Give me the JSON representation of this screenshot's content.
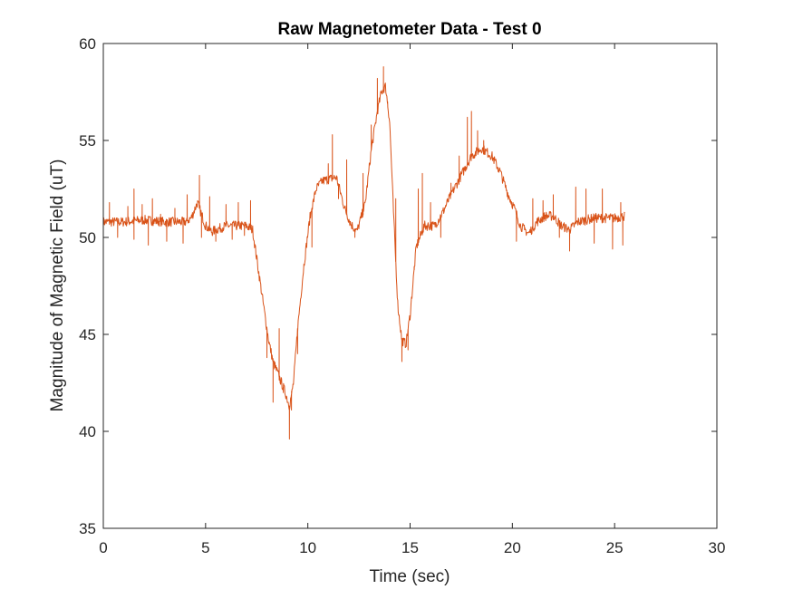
{
  "chart_data": {
    "type": "line",
    "title": "Raw Magnetometer Data - Test 0",
    "xlabel": "Time (sec)",
    "ylabel": "Magnitude of Magnetic Field (uT)",
    "xlim": [
      0,
      30
    ],
    "ylim": [
      35,
      60
    ],
    "x_ticks": [
      0,
      5,
      10,
      15,
      20,
      25,
      30
    ],
    "y_ticks": [
      35,
      40,
      45,
      50,
      55,
      60
    ],
    "grid": false,
    "legend": "none",
    "series": [
      {
        "color": "#D95319",
        "noise": 0.25,
        "x": [
          0,
          1,
          2,
          3,
          4,
          4.3,
          4.6,
          5,
          5.3,
          6,
          7,
          7.3,
          7.6,
          7.9,
          8.1,
          8.3,
          8.6,
          8.9,
          9.1,
          9.3,
          9.5,
          9.8,
          10.1,
          10.4,
          10.7,
          11,
          11.4,
          11.8,
          12.1,
          12.4,
          12.8,
          13.1,
          13.4,
          13.6,
          13.8,
          14.0,
          14.2,
          14.4,
          14.6,
          14.8,
          15.0,
          15.3,
          15.7,
          16.2,
          16.6,
          17.0,
          17.5,
          18.0,
          18.5,
          19.0,
          19.4,
          19.8,
          20.1,
          20.4,
          20.8,
          21.2,
          21.6,
          22.0,
          22.4,
          22.8,
          23.2,
          24.0,
          25.0,
          25.5
        ],
        "y": [
          50.8,
          50.8,
          50.9,
          50.8,
          50.8,
          51.0,
          51.8,
          50.6,
          50.3,
          50.6,
          50.6,
          50.4,
          48.2,
          46.0,
          44.6,
          43.6,
          42.8,
          42.0,
          41.3,
          42.5,
          45.3,
          48.5,
          51.0,
          52.5,
          52.9,
          53.0,
          53.1,
          51.5,
          50.7,
          50.3,
          51.7,
          54.5,
          56.5,
          57.5,
          57.8,
          56.0,
          51.0,
          46.5,
          44.7,
          44.5,
          46.0,
          49.5,
          50.6,
          50.6,
          51.3,
          52.2,
          53.2,
          54.2,
          54.6,
          54.2,
          53.4,
          52.2,
          51.5,
          50.6,
          50.2,
          50.8,
          51.1,
          51.1,
          50.6,
          50.4,
          50.8,
          51.0,
          51.0,
          51.1
        ],
        "spikes": [
          [
            0.3,
            51.8
          ],
          [
            0.7,
            50.0
          ],
          [
            1.2,
            51.6
          ],
          [
            1.5,
            49.9
          ],
          [
            1.5,
            52.5
          ],
          [
            1.9,
            51.7
          ],
          [
            2.2,
            49.6
          ],
          [
            2.4,
            52.0
          ],
          [
            2.8,
            51.2
          ],
          [
            3.1,
            49.8
          ],
          [
            3.5,
            51.5
          ],
          [
            3.9,
            49.7
          ],
          [
            4.1,
            52.2
          ],
          [
            4.7,
            53.2
          ],
          [
            4.8,
            50.0
          ],
          [
            5.2,
            52.1
          ],
          [
            5.5,
            49.8
          ],
          [
            6.0,
            51.7
          ],
          [
            6.3,
            49.9
          ],
          [
            6.6,
            51.8
          ],
          [
            6.9,
            50.1
          ],
          [
            7.2,
            51.9
          ],
          [
            8.0,
            43.8
          ],
          [
            8.3,
            41.5
          ],
          [
            8.6,
            45.3
          ],
          [
            8.8,
            42.0
          ],
          [
            9.1,
            39.6
          ],
          [
            9.2,
            41.1
          ],
          [
            9.5,
            44.0
          ],
          [
            10.2,
            49.5
          ],
          [
            11.0,
            53.8
          ],
          [
            11.2,
            55.3
          ],
          [
            11.5,
            52.0
          ],
          [
            11.9,
            54.0
          ],
          [
            12.3,
            50.0
          ],
          [
            12.7,
            53.3
          ],
          [
            13.1,
            55.8
          ],
          [
            13.4,
            58.2
          ],
          [
            13.7,
            58.8
          ],
          [
            13.9,
            57.0
          ],
          [
            14.3,
            52.0
          ],
          [
            14.6,
            43.6
          ],
          [
            14.9,
            44.2
          ],
          [
            15.2,
            48.5
          ],
          [
            15.4,
            52.5
          ],
          [
            15.6,
            53.3
          ],
          [
            16.0,
            51.8
          ],
          [
            16.5,
            50.0
          ],
          [
            17.0,
            52.8
          ],
          [
            17.4,
            54.2
          ],
          [
            17.8,
            56.2
          ],
          [
            18.0,
            56.5
          ],
          [
            18.3,
            55.5
          ],
          [
            18.6,
            55.0
          ],
          [
            19.3,
            53.4
          ],
          [
            20.2,
            49.8
          ],
          [
            20.6,
            50.5
          ],
          [
            21.0,
            52.0
          ],
          [
            21.5,
            51.9
          ],
          [
            22.0,
            52.2
          ],
          [
            22.3,
            50.0
          ],
          [
            22.8,
            49.3
          ],
          [
            23.1,
            52.6
          ],
          [
            23.6,
            52.5
          ],
          [
            24.0,
            49.7
          ],
          [
            24.4,
            52.5
          ],
          [
            24.9,
            49.4
          ],
          [
            25.3,
            51.8
          ],
          [
            25.4,
            49.6
          ]
        ]
      }
    ]
  }
}
